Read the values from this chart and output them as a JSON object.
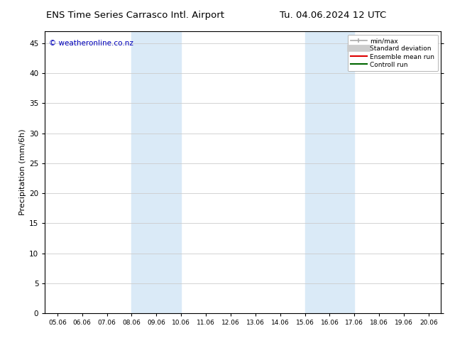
{
  "title_left": "ENS Time Series Carrasco Intl. Airport",
  "title_right": "Tu. 04.06.2024 12 UTC",
  "ylabel": "Precipitation (mm/6h)",
  "watermark": "© weatheronline.co.nz",
  "x_tick_labels": [
    "05.06",
    "06.06",
    "07.06",
    "08.06",
    "09.06",
    "10.06",
    "11.06",
    "12.06",
    "13.06",
    "14.06",
    "15.06",
    "16.06",
    "17.06",
    "18.06",
    "19.06",
    "20.06"
  ],
  "x_tick_positions": [
    0,
    1,
    2,
    3,
    4,
    5,
    6,
    7,
    8,
    9,
    10,
    11,
    12,
    13,
    14,
    15
  ],
  "ylim": [
    0,
    47
  ],
  "yticks": [
    0,
    5,
    10,
    15,
    20,
    25,
    30,
    35,
    40,
    45
  ],
  "shaded_regions": [
    {
      "x_start": 3.0,
      "x_end": 5.0
    },
    {
      "x_start": 10.0,
      "x_end": 12.0
    }
  ],
  "shade_color": "#daeaf7",
  "background_color": "#ffffff",
  "plot_bg_color": "#ffffff",
  "grid_color": "#cccccc",
  "title_fontsize": 9.5,
  "watermark_color": "#0000bb",
  "legend_items": [
    {
      "label": "min/max",
      "color": "#aaaaaa",
      "lw": 1.5
    },
    {
      "label": "Standard deviation",
      "color": "#cccccc",
      "lw": 6
    },
    {
      "label": "Ensemble mean run",
      "color": "#dd0000",
      "lw": 1.5
    },
    {
      "label": "Controll run",
      "color": "#006600",
      "lw": 1.5
    }
  ]
}
